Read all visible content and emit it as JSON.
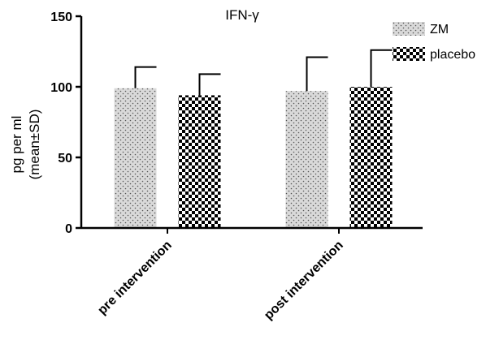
{
  "chart_data": {
    "type": "bar",
    "title": "IFN-γ",
    "ylabel_lines": [
      "pg per ml",
      "(mean±SD)"
    ],
    "xlabel": "",
    "ylim": [
      0,
      150
    ],
    "yticks": [
      0,
      50,
      100,
      150
    ],
    "categories": [
      "pre intervention",
      "post intervention"
    ],
    "series": [
      {
        "name": "ZM",
        "values": [
          99,
          97
        ],
        "sd": [
          15,
          24
        ],
        "color": "#d9d9d9",
        "pattern": "dots"
      },
      {
        "name": "placebo",
        "values": [
          94,
          100
        ],
        "sd": [
          15,
          26
        ],
        "color": "#000000",
        "pattern": "checker"
      }
    ],
    "grid": false,
    "legend_position": "top-right"
  }
}
